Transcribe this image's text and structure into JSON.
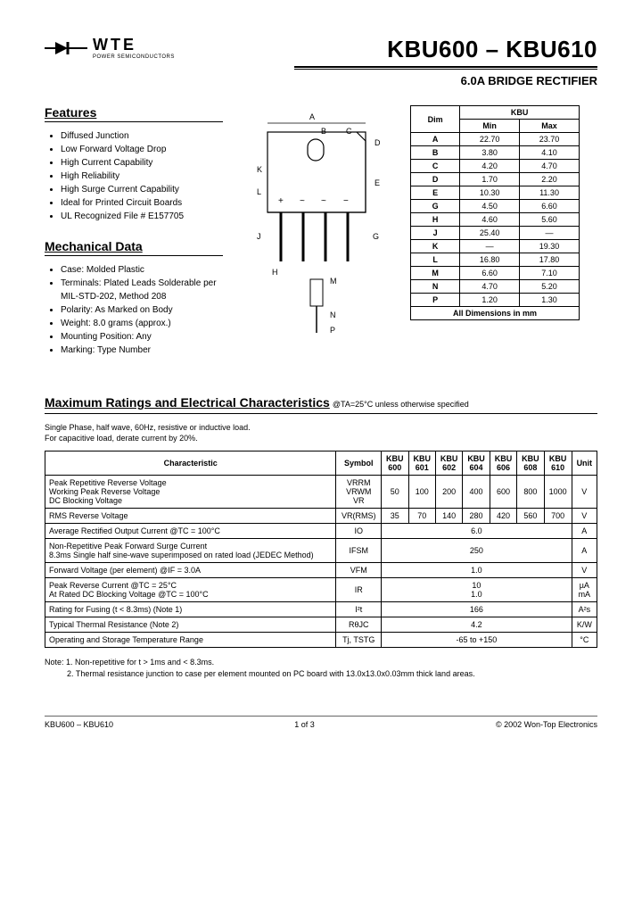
{
  "logo": {
    "brand": "WTE",
    "tagline": "POWER SEMICONDUCTORS"
  },
  "title": {
    "main": "KBU600 – KBU610",
    "sub": "6.0A BRIDGE RECTIFIER"
  },
  "features": {
    "heading": "Features",
    "items": [
      "Diffused Junction",
      "Low Forward Voltage Drop",
      "High Current Capability",
      "High Reliability",
      "High Surge Current Capability",
      "Ideal for Printed Circuit Boards",
      "UL Recognized File # E157705"
    ]
  },
  "mechanical": {
    "heading": "Mechanical Data",
    "items": [
      "Case: Molded Plastic",
      "Terminals: Plated Leads Solderable per MIL-STD-202, Method 208",
      "Polarity: As Marked on Body",
      "Weight: 8.0 grams (approx.)",
      "Mounting Position: Any",
      "Marking: Type Number"
    ]
  },
  "dimensions": {
    "header": [
      "Dim",
      "Min",
      "Max"
    ],
    "group_header": "KBU",
    "rows": [
      [
        "A",
        "22.70",
        "23.70"
      ],
      [
        "B",
        "3.80",
        "4.10"
      ],
      [
        "C",
        "4.20",
        "4.70"
      ],
      [
        "D",
        "1.70",
        "2.20"
      ],
      [
        "E",
        "10.30",
        "11.30"
      ],
      [
        "G",
        "4.50",
        "6.60"
      ],
      [
        "H",
        "4.60",
        "5.60"
      ],
      [
        "J",
        "25.40",
        "—"
      ],
      [
        "K",
        "—",
        "19.30"
      ],
      [
        "L",
        "16.80",
        "17.80"
      ],
      [
        "M",
        "6.60",
        "7.10"
      ],
      [
        "N",
        "4.70",
        "5.20"
      ],
      [
        "P",
        "1.20",
        "1.30"
      ]
    ],
    "footer": "All Dimensions in mm"
  },
  "maxratings": {
    "heading": "Maximum Ratings and Electrical Characteristics",
    "condition": " @TA=25°C unless otherwise specified",
    "subnote": "Single Phase, half wave, 60Hz, resistive or inductive load.\nFor capacitive load, derate current by 20%.",
    "columns": [
      "Characteristic",
      "Symbol",
      "KBU 600",
      "KBU 601",
      "KBU 602",
      "KBU 604",
      "KBU 606",
      "KBU 608",
      "KBU 610",
      "Unit"
    ],
    "rows": [
      {
        "char": "Peak Repetitive Reverse Voltage\nWorking Peak Reverse Voltage\nDC Blocking Voltage",
        "symbol": "VRRM\nVRWM\nVR",
        "vals": [
          "50",
          "100",
          "200",
          "400",
          "600",
          "800",
          "1000"
        ],
        "unit": "V"
      },
      {
        "char": "RMS Reverse Voltage",
        "symbol": "VR(RMS)",
        "vals": [
          "35",
          "70",
          "140",
          "280",
          "420",
          "560",
          "700"
        ],
        "unit": "V"
      },
      {
        "char": "Average Rectified Output Current      @TC = 100°C",
        "symbol": "IO",
        "span": "6.0",
        "unit": "A"
      },
      {
        "char": "Non-Repetitive Peak Forward Surge Current\n8.3ms Single half sine-wave superimposed on rated load (JEDEC Method)",
        "symbol": "IFSM",
        "span": "250",
        "unit": "A"
      },
      {
        "char": "Forward Voltage (per element)           @IF = 3.0A",
        "symbol": "VFM",
        "span": "1.0",
        "unit": "V"
      },
      {
        "char": "Peak Reverse Current                @TC = 25°C\nAt Rated DC Blocking Voltage     @TC = 100°C",
        "symbol": "IR",
        "span": "10\n1.0",
        "unit": "µA\nmA"
      },
      {
        "char": "Rating for Fusing (t < 8.3ms) (Note 1)",
        "symbol": "I²t",
        "span": "166",
        "unit": "A²s"
      },
      {
        "char": "Typical Thermal Resistance (Note 2)",
        "symbol": "RθJC",
        "span": "4.2",
        "unit": "K/W"
      },
      {
        "char": "Operating and Storage Temperature Range",
        "symbol": "Tj, TSTG",
        "span": "-65 to +150",
        "unit": "°C"
      }
    ]
  },
  "notes": {
    "n1": "Note:  1. Non-repetitive for t > 1ms and < 8.3ms.",
    "n2": "          2. Thermal resistance junction to case per element mounted on PC board with 13.0x13.0x0.03mm thick land areas."
  },
  "footer": {
    "left": "KBU600 – KBU610",
    "center": "1 of 3",
    "right": "© 2002 Won-Top Electronics"
  },
  "package_diagram": {
    "labels": [
      "A",
      "B",
      "C",
      "D",
      "E",
      "G",
      "H",
      "J",
      "K",
      "L",
      "M",
      "N",
      "P"
    ],
    "note": "package outline diagram"
  }
}
